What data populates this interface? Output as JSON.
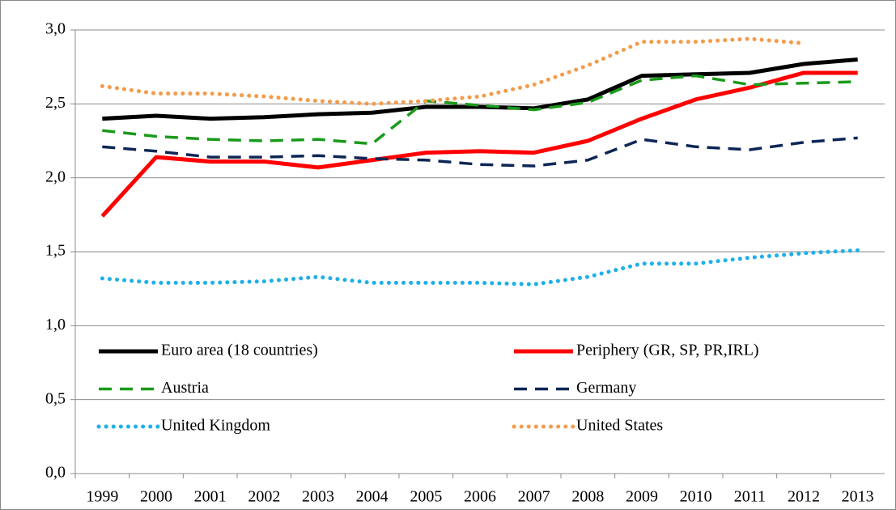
{
  "chart_data": {
    "type": "line",
    "categories": [
      "1999",
      "2000",
      "2001",
      "2002",
      "2003",
      "2004",
      "2005",
      "2006",
      "2007",
      "2008",
      "2009",
      "2010",
      "2011",
      "2012",
      "2013"
    ],
    "ylim": [
      0,
      3
    ],
    "yticks": [
      {
        "value": 0,
        "label": "0,0"
      },
      {
        "value": 0.5,
        "label": "0,5"
      },
      {
        "value": 1,
        "label": "1,0"
      },
      {
        "value": 1.5,
        "label": "1,5"
      },
      {
        "value": 2,
        "label": "2,0"
      },
      {
        "value": 2.5,
        "label": "2,5"
      },
      {
        "value": 3,
        "label": "3,0"
      }
    ],
    "grid": true,
    "legend": "inside-bottom",
    "series": [
      {
        "name": "Euro area (18 countries)",
        "color": "#000000",
        "dash": "solid",
        "values": [
          2.4,
          2.42,
          2.4,
          2.41,
          2.43,
          2.44,
          2.48,
          2.48,
          2.47,
          2.53,
          2.69,
          2.7,
          2.71,
          2.77,
          2.8
        ]
      },
      {
        "name": "Periphery (GR, SP, PR,IRL)",
        "color": "#ff0000",
        "dash": "solid",
        "values": [
          1.74,
          2.14,
          2.11,
          2.11,
          2.07,
          2.12,
          2.17,
          2.18,
          2.17,
          2.25,
          2.4,
          2.53,
          2.61,
          2.71,
          2.71
        ]
      },
      {
        "name": "Austria",
        "color": "#1a9a1a",
        "dash": "dashed",
        "values": [
          2.32,
          2.28,
          2.26,
          2.25,
          2.26,
          2.23,
          2.52,
          2.49,
          2.46,
          2.51,
          2.66,
          2.69,
          2.63,
          2.64,
          2.65
        ]
      },
      {
        "name": "Germany",
        "color": "#0d2656",
        "dash": "dashed",
        "values": [
          2.21,
          2.18,
          2.14,
          2.14,
          2.15,
          2.13,
          2.12,
          2.09,
          2.08,
          2.12,
          2.26,
          2.21,
          2.19,
          2.24,
          2.27
        ]
      },
      {
        "name": "United Kingdom",
        "color": "#1eb0e8",
        "dash": "dotted",
        "values": [
          1.32,
          1.29,
          1.29,
          1.3,
          1.33,
          1.29,
          1.29,
          1.29,
          1.28,
          1.33,
          1.42,
          1.42,
          1.46,
          1.49,
          1.51
        ]
      },
      {
        "name": "United States",
        "color": "#f39c4b",
        "dash": "dotted",
        "values": [
          2.62,
          2.57,
          2.57,
          2.55,
          2.52,
          2.5,
          2.52,
          2.55,
          2.63,
          2.76,
          2.92,
          2.92,
          2.94,
          2.91,
          null
        ]
      }
    ]
  }
}
